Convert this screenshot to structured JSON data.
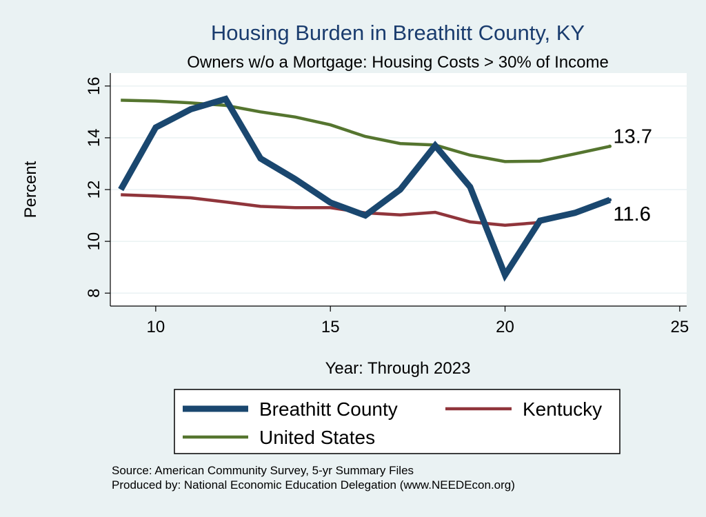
{
  "chart_data": {
    "type": "line",
    "title": "Housing Burden in Breathitt County, KY",
    "subtitle": "Owners w/o a Mortgage: Housing Costs > 30% of Income",
    "xlabel": "Year: Through 2023",
    "ylabel": "Percent",
    "xlim": [
      8.7,
      25.2
    ],
    "ylim": [
      7.5,
      16.5
    ],
    "xticks": [
      10,
      15,
      20,
      25
    ],
    "yticks": [
      8,
      10,
      12,
      14,
      16
    ],
    "grid": true,
    "legend_position": "bottom",
    "series": [
      {
        "name": "Breathitt County",
        "color": "#1a476f",
        "width": "thick",
        "x": [
          9,
          10,
          11,
          12,
          13,
          14,
          15,
          16,
          17,
          18,
          19,
          20,
          21,
          22,
          23
        ],
        "y": [
          12.0,
          14.4,
          15.1,
          15.5,
          13.2,
          12.4,
          11.5,
          11.0,
          12.0,
          13.7,
          12.1,
          8.7,
          10.8,
          11.1,
          11.6
        ]
      },
      {
        "name": "Kentucky",
        "color": "#90353b",
        "width": "medium",
        "x": [
          9,
          10,
          11,
          12,
          13,
          14,
          15,
          16,
          17,
          18,
          19,
          20,
          21,
          22,
          23
        ],
        "y": [
          11.8,
          11.75,
          11.68,
          11.52,
          11.35,
          11.3,
          11.3,
          11.1,
          11.02,
          11.12,
          10.75,
          10.62,
          10.73,
          11.1,
          11.6
        ]
      },
      {
        "name": "United States",
        "color": "#55752f",
        "width": "medium",
        "x": [
          9,
          10,
          11,
          12,
          13,
          14,
          15,
          16,
          17,
          18,
          19,
          20,
          21,
          22,
          23
        ],
        "y": [
          15.45,
          15.42,
          15.35,
          15.25,
          15.0,
          14.8,
          14.5,
          14.05,
          13.78,
          13.72,
          13.33,
          13.08,
          13.1,
          13.38,
          13.67
        ]
      }
    ],
    "end_labels": [
      {
        "text": "13.7",
        "series": "United States"
      },
      {
        "text": "11.6",
        "series": "Kentucky"
      },
      {
        "text": "11.6",
        "series": "Breathitt County"
      }
    ]
  },
  "footer": {
    "source": "Source: American Community Survey, 5-yr Summary Files",
    "producer": "Produced by: National Economic Education Delegation (www.NEEDEcon.org)"
  }
}
